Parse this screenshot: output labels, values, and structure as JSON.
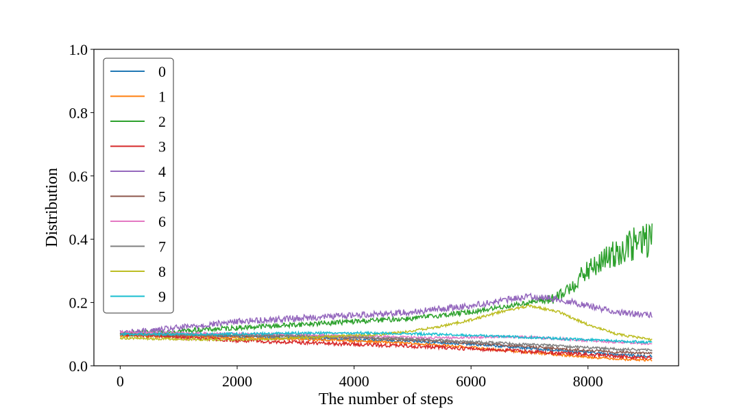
{
  "chart_data": {
    "type": "line",
    "title": "",
    "xlabel": "The number of steps",
    "ylabel": "Distribution",
    "xlim": [
      -450,
      9550
    ],
    "ylim": [
      0.0,
      1.0
    ],
    "xticks": [
      0,
      2000,
      4000,
      6000,
      8000
    ],
    "xtick_labels": [
      "0",
      "2000",
      "4000",
      "6000",
      "8000"
    ],
    "yticks": [
      0.0,
      0.2,
      0.4,
      0.6,
      0.8,
      1.0
    ],
    "ytick_labels": [
      "0.0",
      "0.2",
      "0.4",
      "0.6",
      "0.8",
      "1.0"
    ],
    "grid": false,
    "legend_position": "upper-left",
    "x_step": 500,
    "series": [
      {
        "name": "0",
        "color": "#1f77b4",
        "noise": 0.004,
        "values": [
          0.1,
          0.098,
          0.096,
          0.094,
          0.092,
          0.09,
          0.088,
          0.086,
          0.083,
          0.08,
          0.077,
          0.073,
          0.068,
          0.062,
          0.055,
          0.048,
          0.042,
          0.036,
          0.03
        ]
      },
      {
        "name": "1",
        "color": "#ff7f0e",
        "noise": 0.004,
        "values": [
          0.095,
          0.093,
          0.092,
          0.09,
          0.088,
          0.086,
          0.084,
          0.082,
          0.079,
          0.075,
          0.07,
          0.065,
          0.058,
          0.05,
          0.042,
          0.035,
          0.028,
          0.022,
          0.018
        ]
      },
      {
        "name": "2",
        "color": "#2ca02c",
        "noise": 0.008,
        "values": [
          0.1,
          0.105,
          0.11,
          0.115,
          0.12,
          0.125,
          0.13,
          0.135,
          0.14,
          0.145,
          0.15,
          0.16,
          0.17,
          0.185,
          0.2,
          0.215,
          0.3,
          0.36,
          0.4,
          0.45
        ]
      },
      {
        "name": "3",
        "color": "#d62728",
        "noise": 0.006,
        "values": [
          0.1,
          0.095,
          0.09,
          0.085,
          0.08,
          0.077,
          0.074,
          0.071,
          0.068,
          0.065,
          0.062,
          0.058,
          0.054,
          0.05,
          0.045,
          0.04,
          0.035,
          0.03,
          0.025
        ]
      },
      {
        "name": "4",
        "color": "#9467bd",
        "noise": 0.01,
        "values": [
          0.105,
          0.11,
          0.12,
          0.13,
          0.14,
          0.145,
          0.15,
          0.155,
          0.16,
          0.165,
          0.17,
          0.18,
          0.19,
          0.205,
          0.22,
          0.21,
          0.19,
          0.17,
          0.16
        ]
      },
      {
        "name": "5",
        "color": "#8c564b",
        "noise": 0.004,
        "values": [
          0.1,
          0.099,
          0.098,
          0.097,
          0.096,
          0.095,
          0.093,
          0.091,
          0.089,
          0.086,
          0.082,
          0.077,
          0.072,
          0.066,
          0.06,
          0.054,
          0.048,
          0.043,
          0.04
        ]
      },
      {
        "name": "6",
        "color": "#e377c2",
        "noise": 0.004,
        "values": [
          0.105,
          0.104,
          0.103,
          0.102,
          0.101,
          0.1,
          0.098,
          0.096,
          0.094,
          0.092,
          0.09,
          0.088,
          0.09,
          0.092,
          0.09,
          0.085,
          0.08,
          0.075,
          0.07
        ]
      },
      {
        "name": "7",
        "color": "#7f7f7f",
        "noise": 0.004,
        "values": [
          0.1,
          0.099,
          0.098,
          0.097,
          0.096,
          0.095,
          0.094,
          0.092,
          0.09,
          0.087,
          0.084,
          0.08,
          0.076,
          0.072,
          0.068,
          0.063,
          0.058,
          0.053,
          0.05
        ]
      },
      {
        "name": "8",
        "color": "#bcbd22",
        "noise": 0.004,
        "values": [
          0.088,
          0.086,
          0.084,
          0.083,
          0.083,
          0.085,
          0.088,
          0.092,
          0.096,
          0.1,
          0.11,
          0.125,
          0.145,
          0.17,
          0.19,
          0.17,
          0.13,
          0.1,
          0.085,
          0.075
        ]
      },
      {
        "name": "9",
        "color": "#17becf",
        "noise": 0.004,
        "values": [
          0.1,
          0.1,
          0.1,
          0.1,
          0.101,
          0.102,
          0.103,
          0.104,
          0.104,
          0.103,
          0.101,
          0.099,
          0.096,
          0.093,
          0.09,
          0.086,
          0.082,
          0.078,
          0.075
        ]
      }
    ]
  }
}
